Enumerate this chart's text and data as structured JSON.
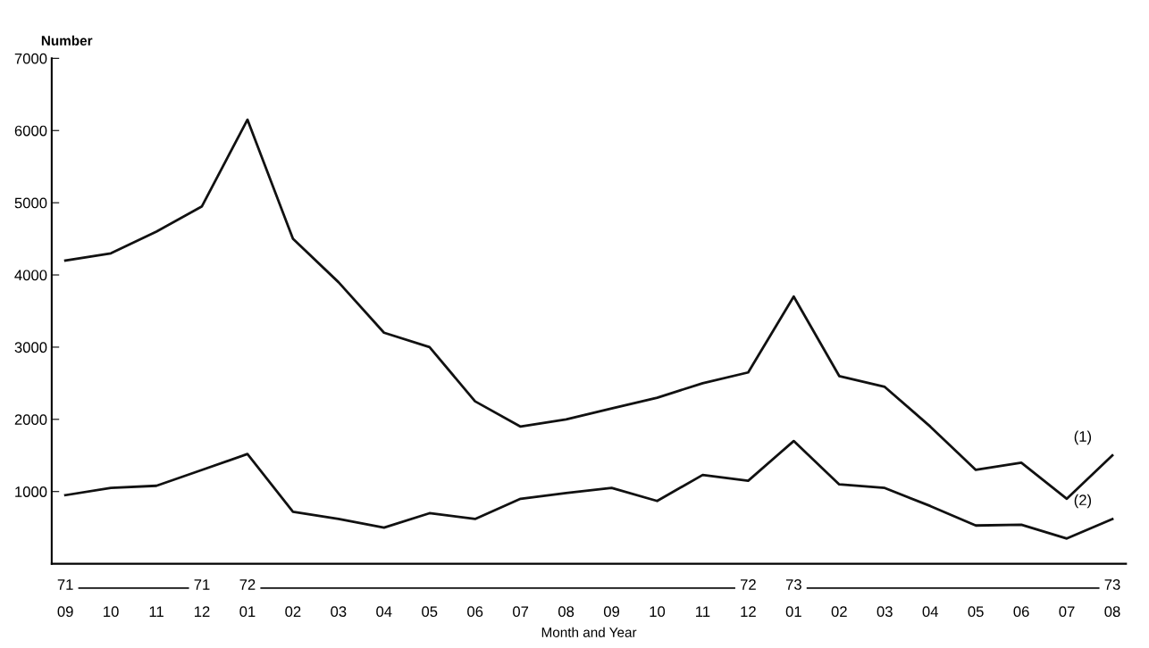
{
  "chart_data": {
    "type": "line",
    "ylabel": "Number",
    "xlabel": "Month and Year",
    "categories": [
      "09",
      "10",
      "11",
      "12",
      "01",
      "02",
      "03",
      "04",
      "05",
      "06",
      "07",
      "08",
      "09",
      "10",
      "11",
      "12",
      "01",
      "02",
      "03",
      "04",
      "05",
      "06",
      "07",
      "08"
    ],
    "series": [
      {
        "color": "#111111",
        "values": [
          4200,
          4300,
          4600,
          4950,
          6150,
          4500,
          3900,
          3200,
          3000,
          2250,
          1900,
          2000,
          2150,
          2300,
          2500,
          2650,
          3700,
          2600,
          2450,
          1900,
          1300,
          1400,
          900,
          1500
        ]
      },
      {
        "color": "#111111",
        "values": [
          950,
          1050,
          1080,
          1300,
          1520,
          720,
          620,
          500,
          700,
          620,
          900,
          980,
          1050,
          870,
          1230,
          1150,
          1700,
          1100,
          1050,
          800,
          530,
          540,
          350,
          620
        ]
      }
    ],
    "ylim": [
      0,
      7000
    ],
    "yticks": [
      1000,
      2000,
      3000,
      4000,
      5000,
      6000,
      7000
    ],
    "grid": false,
    "marker": "none",
    "line_style": "solid",
    "annotations": [
      "(1)",
      "(2)",
      "71",
      "71",
      "72",
      "72",
      "73",
      "73"
    ]
  }
}
